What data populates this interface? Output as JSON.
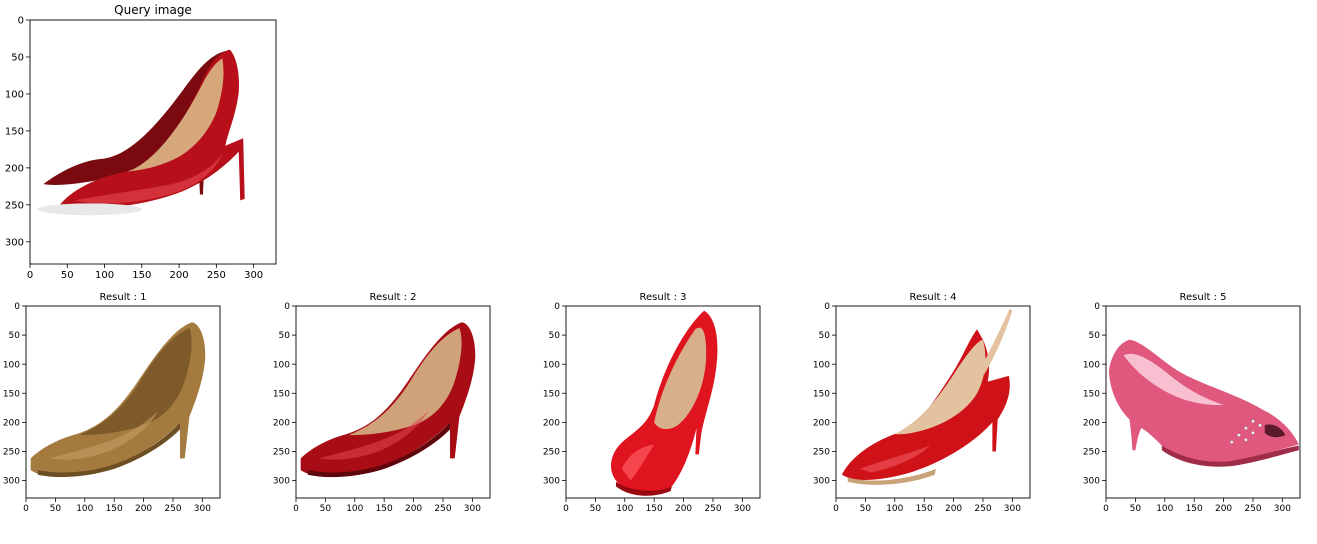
{
  "figure": {
    "panels": [
      {
        "id": "query",
        "title": "Query image",
        "variant": "query",
        "xticks": [
          "0",
          "50",
          "100",
          "150",
          "200",
          "250",
          "300"
        ],
        "yticks": [
          "0",
          "50",
          "100",
          "150",
          "200",
          "250",
          "300"
        ],
        "colors": {
          "body": "#b8101a",
          "dark": "#7a0a10",
          "light": "#e44a52",
          "inner": "#d7a77c"
        }
      },
      {
        "id": "result-1",
        "title": "Result : 1",
        "variant": "classic",
        "xticks": [
          "0",
          "50",
          "100",
          "150",
          "200",
          "250",
          "300"
        ],
        "yticks": [
          "0",
          "50",
          "100",
          "150",
          "200",
          "250",
          "300"
        ],
        "colors": {
          "body": "#a47a3f",
          "dark": "#6d4f24",
          "light": "#caa167",
          "inner": "#7e5a2b"
        }
      },
      {
        "id": "result-2",
        "title": "Result : 2",
        "variant": "classic",
        "xticks": [
          "0",
          "50",
          "100",
          "150",
          "200",
          "250",
          "300"
        ],
        "yticks": [
          "0",
          "50",
          "100",
          "150",
          "200",
          "250",
          "300"
        ],
        "colors": {
          "body": "#a80d16",
          "dark": "#5e060b",
          "light": "#e24750",
          "inner": "#cfa27a"
        }
      },
      {
        "id": "result-3",
        "title": "Result : 3",
        "variant": "front",
        "xticks": [
          "0",
          "50",
          "100",
          "150",
          "200",
          "250",
          "300"
        ],
        "yticks": [
          "0",
          "50",
          "100",
          "150",
          "200",
          "250",
          "300"
        ],
        "colors": {
          "body": "#e0141f",
          "dark": "#99080f",
          "light": "#ff5a61",
          "inner": "#d7b08b"
        }
      },
      {
        "id": "result-4",
        "title": "Result : 4",
        "variant": "slingback",
        "xticks": [
          "0",
          "50",
          "100",
          "150",
          "200",
          "250",
          "300"
        ],
        "yticks": [
          "0",
          "50",
          "100",
          "150",
          "200",
          "250",
          "300"
        ],
        "colors": {
          "body": "#cf1118",
          "dark": "#8d070d",
          "light": "#f05a5f",
          "inner": "#e3c2a0"
        }
      },
      {
        "id": "result-5",
        "title": "Result : 5",
        "variant": "peep",
        "xticks": [
          "0",
          "50",
          "100",
          "150",
          "200",
          "250",
          "300"
        ],
        "yticks": [
          "0",
          "50",
          "100",
          "150",
          "200",
          "250",
          "300"
        ],
        "colors": {
          "body": "#e0587d",
          "dark": "#9f2c49",
          "light": "#f18aa7",
          "inner": "#f7bfd0"
        }
      }
    ]
  }
}
